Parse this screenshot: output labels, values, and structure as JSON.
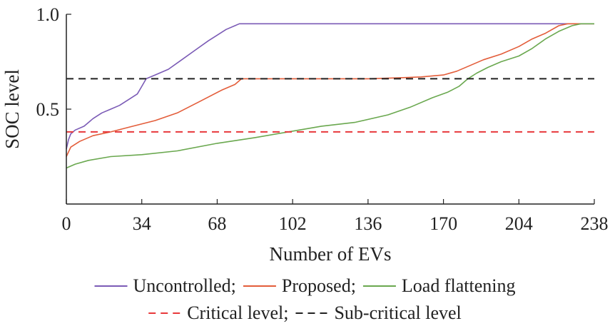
{
  "chart_data": {
    "type": "line",
    "xlabel": "Number of EVs",
    "ylabel": "SOC level",
    "xlim": [
      0,
      238
    ],
    "ylim": [
      0.0,
      1.0
    ],
    "x_ticks": [
      "0",
      "34",
      "68",
      "102",
      "136",
      "170",
      "204",
      "238"
    ],
    "y_ticks": [
      "0.5",
      "1.0"
    ],
    "grid": false,
    "legend_position": "bottom",
    "series": [
      {
        "name": "Uncontrolled;",
        "style": "solid",
        "color": "#7b5bb6",
        "points": [
          [
            0,
            0.29
          ],
          [
            1,
            0.34
          ],
          [
            2,
            0.37
          ],
          [
            4,
            0.39
          ],
          [
            8,
            0.41
          ],
          [
            12,
            0.45
          ],
          [
            16,
            0.48
          ],
          [
            20,
            0.5
          ],
          [
            24,
            0.52
          ],
          [
            28,
            0.55
          ],
          [
            32,
            0.58
          ],
          [
            34,
            0.62
          ],
          [
            36,
            0.66
          ],
          [
            40,
            0.68
          ],
          [
            46,
            0.71
          ],
          [
            52,
            0.76
          ],
          [
            58,
            0.81
          ],
          [
            64,
            0.86
          ],
          [
            68,
            0.89
          ],
          [
            72,
            0.92
          ],
          [
            76,
            0.94
          ],
          [
            78,
            0.95
          ],
          [
            238,
            0.95
          ]
        ]
      },
      {
        "name": "Proposed;",
        "style": "solid",
        "color": "#e35d3a",
        "points": [
          [
            0,
            0.25
          ],
          [
            2,
            0.3
          ],
          [
            6,
            0.33
          ],
          [
            12,
            0.36
          ],
          [
            20,
            0.38
          ],
          [
            30,
            0.41
          ],
          [
            40,
            0.44
          ],
          [
            50,
            0.48
          ],
          [
            60,
            0.54
          ],
          [
            70,
            0.6
          ],
          [
            76,
            0.63
          ],
          [
            79,
            0.66
          ],
          [
            102,
            0.66
          ],
          [
            136,
            0.66
          ],
          [
            150,
            0.665
          ],
          [
            160,
            0.67
          ],
          [
            170,
            0.68
          ],
          [
            176,
            0.7
          ],
          [
            182,
            0.73
          ],
          [
            188,
            0.76
          ],
          [
            196,
            0.79
          ],
          [
            204,
            0.83
          ],
          [
            210,
            0.87
          ],
          [
            216,
            0.9
          ],
          [
            222,
            0.94
          ],
          [
            226,
            0.95
          ],
          [
            238,
            0.95
          ]
        ]
      },
      {
        "name": "Load flattening",
        "style": "solid",
        "color": "#6aa84f",
        "points": [
          [
            0,
            0.19
          ],
          [
            4,
            0.21
          ],
          [
            10,
            0.23
          ],
          [
            20,
            0.25
          ],
          [
            34,
            0.26
          ],
          [
            50,
            0.28
          ],
          [
            68,
            0.32
          ],
          [
            85,
            0.35
          ],
          [
            100,
            0.38
          ],
          [
            115,
            0.41
          ],
          [
            130,
            0.43
          ],
          [
            145,
            0.47
          ],
          [
            155,
            0.51
          ],
          [
            165,
            0.56
          ],
          [
            172,
            0.59
          ],
          [
            177,
            0.62
          ],
          [
            181,
            0.66
          ],
          [
            185,
            0.69
          ],
          [
            190,
            0.72
          ],
          [
            196,
            0.75
          ],
          [
            204,
            0.78
          ],
          [
            210,
            0.82
          ],
          [
            216,
            0.87
          ],
          [
            222,
            0.91
          ],
          [
            228,
            0.94
          ],
          [
            232,
            0.95
          ],
          [
            238,
            0.95
          ]
        ]
      },
      {
        "name": "Critical level;",
        "style": "dashed",
        "color": "#e8383b",
        "points": [
          [
            0,
            0.38
          ],
          [
            238,
            0.38
          ]
        ]
      },
      {
        "name": "Sub-critical level",
        "style": "dashed",
        "color": "#222222",
        "points": [
          [
            0,
            0.66
          ],
          [
            238,
            0.66
          ]
        ]
      }
    ],
    "legend_rows": [
      [
        "Uncontrolled;",
        "Proposed;",
        "Load flattening"
      ],
      [
        "Critical level;",
        "Sub-critical level"
      ]
    ]
  }
}
